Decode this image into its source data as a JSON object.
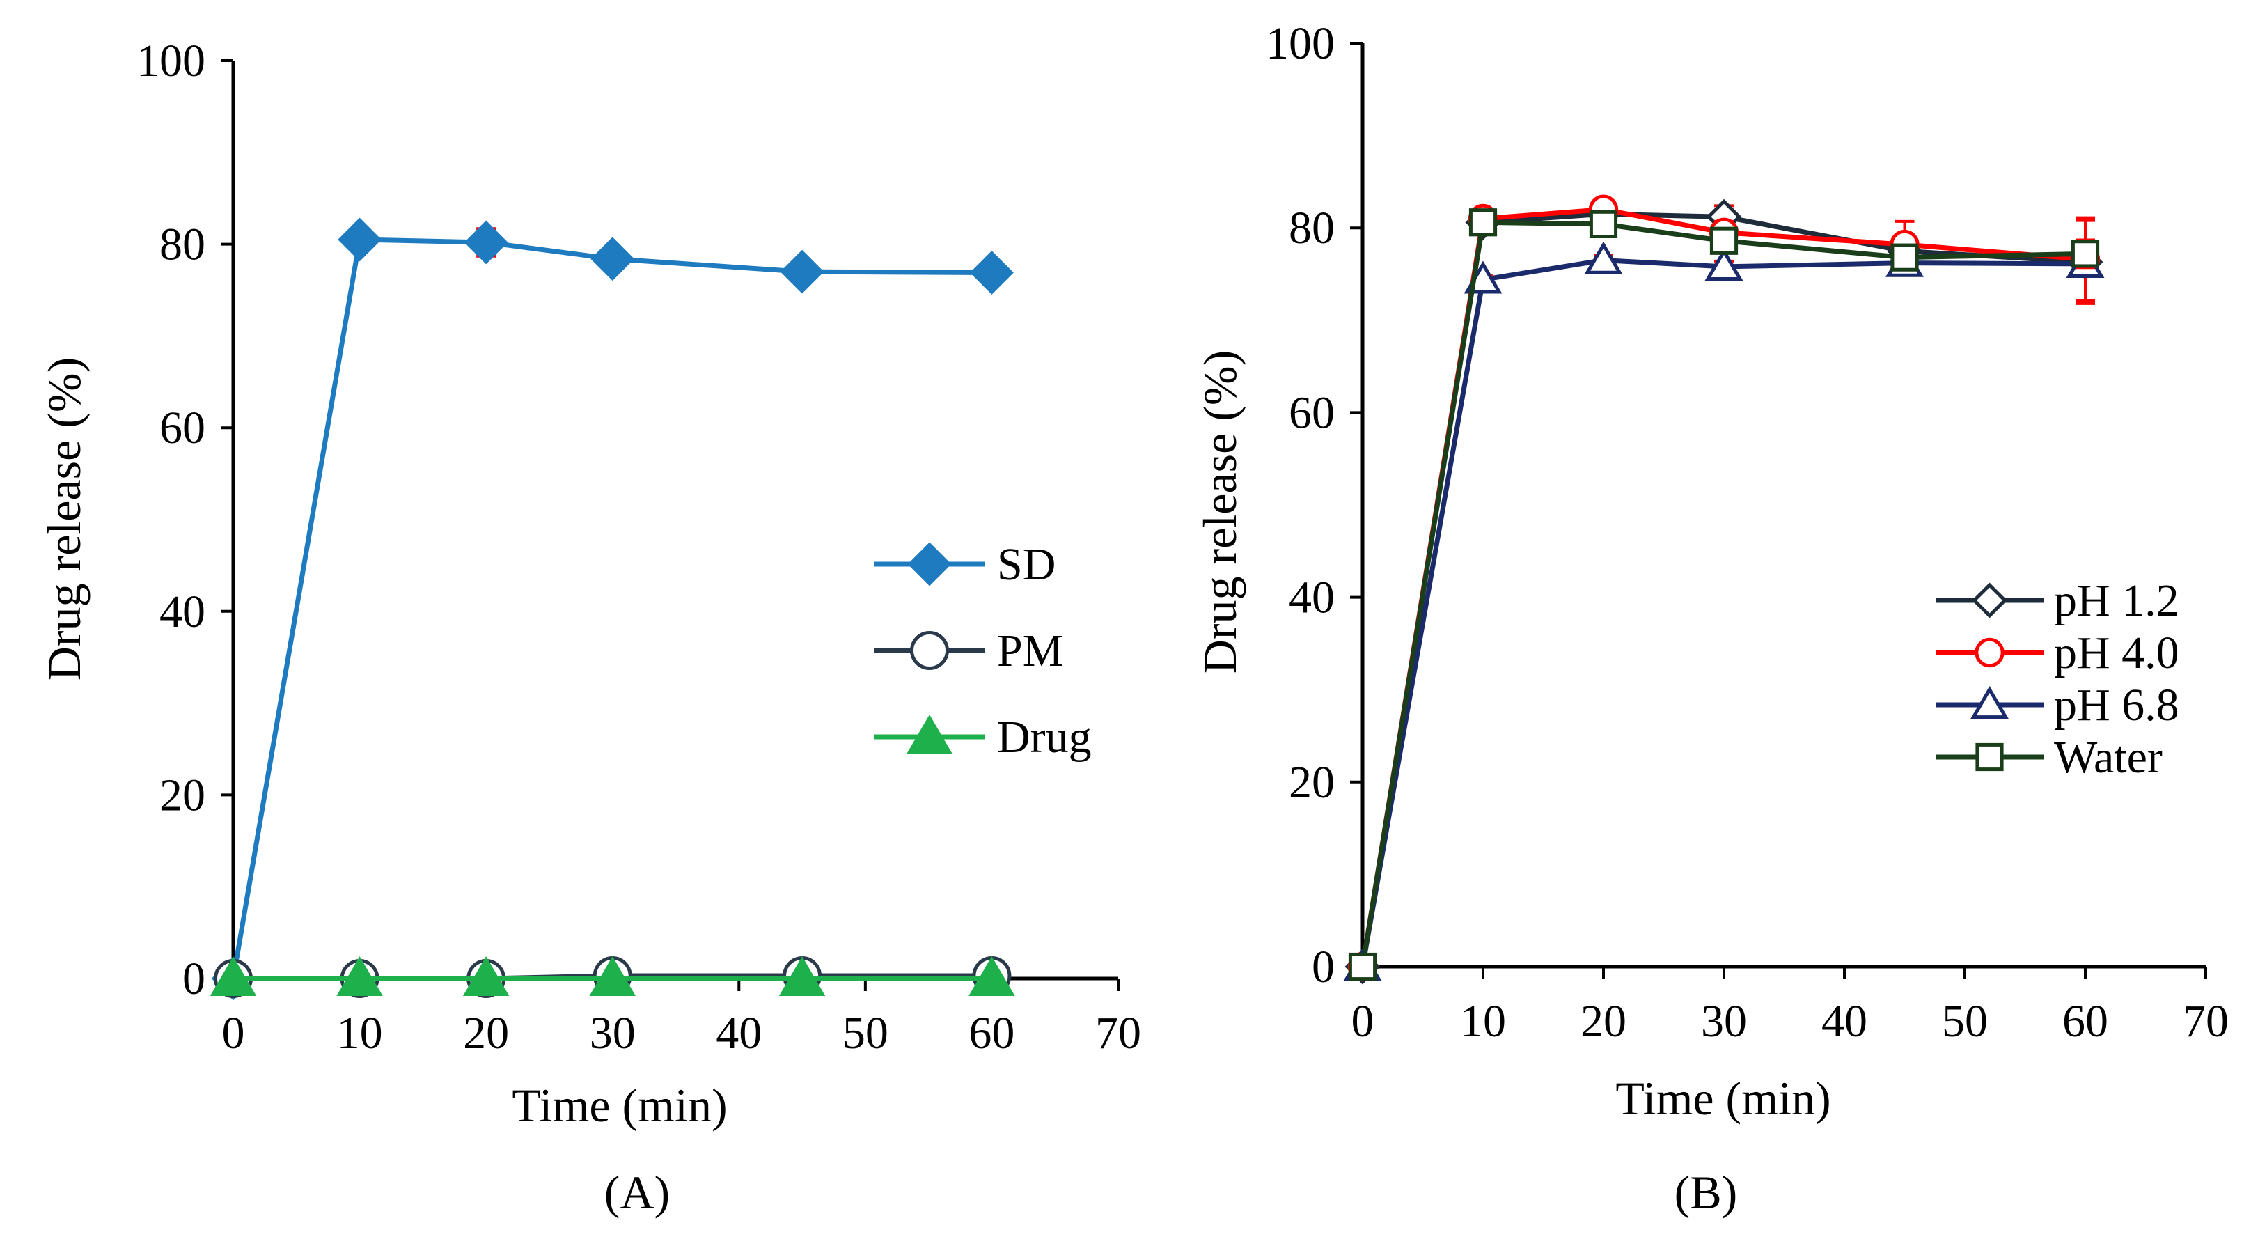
{
  "chart_data": [
    {
      "type": "line",
      "panel_label": "(A)",
      "xlabel": "Time (min)",
      "ylabel": "Drug release (%)",
      "xlim": [
        0,
        70
      ],
      "ylim": [
        0,
        100
      ],
      "xticks": [
        0,
        10,
        20,
        30,
        40,
        50,
        60,
        70
      ],
      "yticks": [
        0,
        20,
        40,
        60,
        80,
        100
      ],
      "grid": false,
      "legend_position": "right-middle",
      "x": [
        0,
        10,
        20,
        30,
        45,
        60
      ],
      "series": [
        {
          "name": "SD",
          "marker": "diamond-filled",
          "color": "#1f7bc0",
          "values": [
            0,
            80.5,
            80.2,
            78.4,
            77.0,
            76.9
          ],
          "errors": [
            0,
            0,
            1.5,
            0,
            0,
            0
          ],
          "error_color": "#ff0000"
        },
        {
          "name": "PM",
          "marker": "circle-open",
          "color": "#2b3a4a",
          "values": [
            0,
            0,
            0,
            0.3,
            0.3,
            0.3
          ],
          "errors": [
            0,
            0,
            0,
            0,
            0,
            0
          ],
          "error_color": "#ff0000"
        },
        {
          "name": "Drug",
          "marker": "triangle-filled",
          "color": "#1db04b",
          "values": [
            0,
            0,
            0,
            0,
            0,
            0
          ],
          "errors": [
            0,
            0,
            0,
            0,
            0,
            0
          ],
          "error_color": "#ff0000"
        }
      ]
    },
    {
      "type": "line",
      "panel_label": "(B)",
      "xlabel": "Time (min)",
      "ylabel": "Drug release (%)",
      "xlim": [
        0,
        70
      ],
      "ylim": [
        0,
        100
      ],
      "xticks": [
        0,
        10,
        20,
        30,
        40,
        50,
        60,
        70
      ],
      "yticks": [
        0,
        20,
        40,
        60,
        80,
        100
      ],
      "grid": false,
      "legend_position": "right-middle",
      "x": [
        0,
        10,
        20,
        30,
        45,
        60
      ],
      "series": [
        {
          "name": "pH 1.2",
          "marker": "diamond-open",
          "color": "#1e2b3a",
          "values": [
            0,
            80.6,
            81.5,
            81.2,
            77.5,
            76.3
          ],
          "errors": [
            0,
            0.5,
            0.8,
            1.2,
            1.0,
            4.5
          ],
          "error_color": "#ff0000"
        },
        {
          "name": "pH 4.0",
          "marker": "circle-open",
          "color": "#ff0000",
          "values": [
            0,
            81.0,
            82.0,
            79.5,
            78.2,
            76.6
          ],
          "errors": [
            0,
            0.5,
            0.8,
            1.2,
            2.5,
            4.5
          ],
          "error_color": "#ff0000"
        },
        {
          "name": "pH 6.8",
          "marker": "triangle-open",
          "color": "#1b2a6b",
          "values": [
            0,
            74.4,
            76.5,
            75.8,
            76.2,
            76.1
          ],
          "errors": [
            0,
            0.4,
            0.5,
            0.6,
            0.8,
            1.0
          ],
          "error_color": "#ff0000"
        },
        {
          "name": "Water",
          "marker": "square-open",
          "color": "#1a3d1a",
          "values": [
            0,
            80.6,
            80.4,
            78.6,
            76.8,
            77.2
          ],
          "errors": [
            0,
            0.5,
            1.2,
            1.0,
            0.8,
            1.5
          ],
          "error_color": "#ff0000"
        }
      ]
    }
  ]
}
